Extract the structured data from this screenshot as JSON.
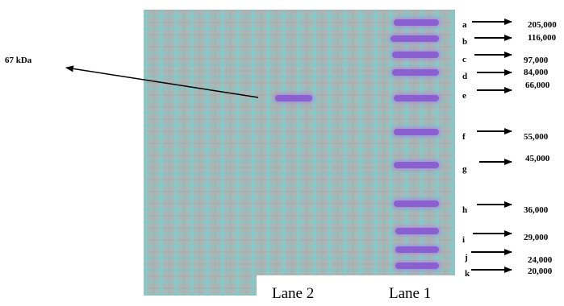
{
  "marker_annotation": {
    "label": "67 kDa"
  },
  "lanes": [
    {
      "label": "Lane 2"
    },
    {
      "label": "Lane 1"
    }
  ],
  "ladder": [
    {
      "letter": "a",
      "mw": "205,000"
    },
    {
      "letter": "b",
      "mw": "116,000"
    },
    {
      "letter": "c",
      "mw": "97,000"
    },
    {
      "letter": "d",
      "mw": "84,000"
    },
    {
      "letter": "e",
      "mw": "66,000"
    },
    {
      "letter": "f",
      "mw": "55,000"
    },
    {
      "letter": "g",
      "mw": "45,000"
    },
    {
      "letter": "h",
      "mw": "36,000"
    },
    {
      "letter": "i",
      "mw": "29,000"
    },
    {
      "letter": "j",
      "mw": "24,000"
    },
    {
      "letter": "k",
      "mw": "20,000"
    }
  ],
  "colors": {
    "band": "#8a5fd0",
    "gel_background": "#a9b7b6"
  }
}
